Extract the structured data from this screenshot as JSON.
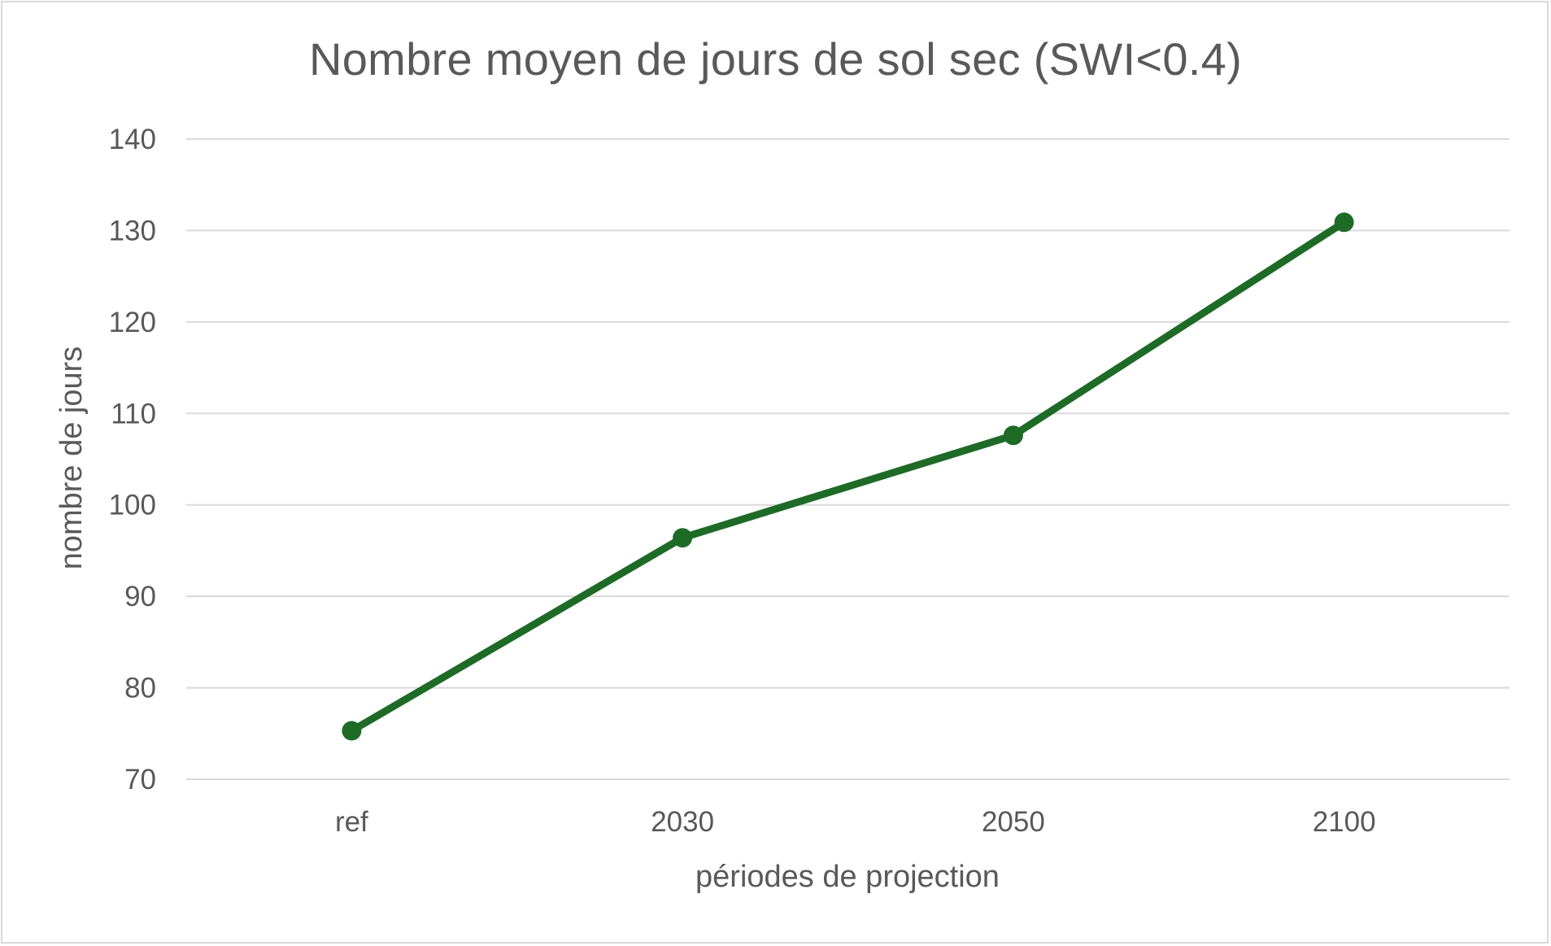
{
  "chart_data": {
    "type": "line",
    "title": "Nombre moyen de jours de sol sec (SWI<0.4)",
    "xlabel": "périodes de projection",
    "ylabel": "nombre de jours",
    "categories": [
      "ref",
      "2030",
      "2050",
      "2100"
    ],
    "series": [
      {
        "values": [
          75.3,
          96.4,
          107.6,
          130.9
        ],
        "color": "#1e6b27"
      }
    ],
    "ylim": [
      70,
      140
    ],
    "yticks": [
      70,
      80,
      90,
      100,
      110,
      120,
      130,
      140
    ],
    "grid": true,
    "legend": "none"
  },
  "colors": {
    "gridline": "#d9d9d9",
    "text": "#595959",
    "series": "#1e6b27"
  }
}
